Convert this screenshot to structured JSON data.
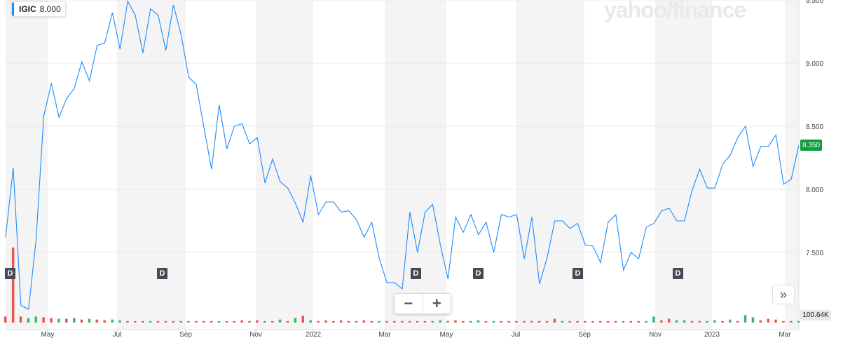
{
  "legend": {
    "symbol": "IGIC",
    "value": "8.000"
  },
  "watermark": "yahoo/finance",
  "last_price_label": "8.350",
  "volume_label": "100.64K",
  "controls": {
    "zoom_out": "−",
    "zoom_in": "+",
    "scroll_right": "»"
  },
  "dividend_marker": "D",
  "colors": {
    "line": "#1a8cff",
    "vol_up": "#3cb371",
    "vol_down": "#ef5350",
    "band": "#f4f4f4",
    "price_tag": "#0e9e3e"
  },
  "chart_data": {
    "type": "line",
    "series": [
      {
        "values": [
          7.62,
          8.17,
          7.08,
          7.05,
          7.6,
          8.58,
          8.84,
          8.57,
          8.72,
          8.8,
          9.01,
          8.86,
          9.14,
          9.16,
          9.4,
          9.11,
          9.49,
          9.38,
          9.08,
          9.43,
          9.38,
          9.1,
          9.46,
          9.23,
          8.89,
          8.83,
          8.49,
          8.16,
          8.67,
          8.32,
          8.5,
          8.52,
          8.36,
          8.41,
          8.05,
          8.24,
          8.06,
          8.01,
          7.89,
          7.74,
          8.11,
          7.8,
          7.9,
          7.9,
          7.82,
          7.83,
          7.76,
          7.62,
          7.74,
          7.45,
          7.26,
          7.26,
          7.21,
          7.82,
          7.5,
          7.82,
          7.88,
          7.56,
          7.29,
          7.78,
          7.66,
          7.8,
          7.64,
          7.74,
          7.5,
          7.8,
          7.78,
          7.8,
          7.45,
          7.78,
          7.25,
          7.46,
          7.75,
          7.75,
          7.69,
          7.73,
          7.56,
          7.55,
          7.42,
          7.74,
          7.8,
          7.36,
          7.5,
          7.45,
          7.7,
          7.73,
          7.83,
          7.85,
          7.75,
          7.75,
          7.99,
          8.16,
          8.01,
          8.01,
          8.2,
          8.27,
          8.41,
          8.5,
          8.18,
          8.34,
          8.34,
          8.43,
          8.04,
          8.08,
          8.35
        ]
      }
    ],
    "volume": [
      {
        "v": 0.08,
        "up": false
      },
      {
        "v": 1.0,
        "up": false
      },
      {
        "v": 0.08,
        "up": false
      },
      {
        "v": 0.06,
        "up": true
      },
      {
        "v": 0.08,
        "up": true
      },
      {
        "v": 0.07,
        "up": false
      },
      {
        "v": 0.06,
        "up": false
      },
      {
        "v": 0.05,
        "up": true
      },
      {
        "v": 0.05,
        "up": false
      },
      {
        "v": 0.06,
        "up": true
      },
      {
        "v": 0.04,
        "up": false
      },
      {
        "v": 0.05,
        "up": true
      },
      {
        "v": 0.04,
        "up": false
      },
      {
        "v": 0.03,
        "up": false
      },
      {
        "v": 0.04,
        "up": true
      },
      {
        "v": 0.03,
        "up": true
      },
      {
        "v": 0.02,
        "up": false
      },
      {
        "v": 0.02,
        "up": false
      },
      {
        "v": 0.02,
        "up": false
      },
      {
        "v": 0.02,
        "up": true
      },
      {
        "v": 0.02,
        "up": false
      },
      {
        "v": 0.02,
        "up": false
      },
      {
        "v": 0.02,
        "up": false
      },
      {
        "v": 0.02,
        "up": false
      },
      {
        "v": 0.02,
        "up": true
      },
      {
        "v": 0.02,
        "up": false
      },
      {
        "v": 0.02,
        "up": false
      },
      {
        "v": 0.02,
        "up": false
      },
      {
        "v": 0.02,
        "up": true
      },
      {
        "v": 0.02,
        "up": false
      },
      {
        "v": 0.02,
        "up": false
      },
      {
        "v": 0.03,
        "up": false
      },
      {
        "v": 0.02,
        "up": false
      },
      {
        "v": 0.03,
        "up": false
      },
      {
        "v": 0.02,
        "up": true
      },
      {
        "v": 0.02,
        "up": false
      },
      {
        "v": 0.04,
        "up": true
      },
      {
        "v": 0.02,
        "up": false
      },
      {
        "v": 0.06,
        "up": true
      },
      {
        "v": 0.09,
        "up": false
      },
      {
        "v": 0.03,
        "up": true
      },
      {
        "v": 0.02,
        "up": false
      },
      {
        "v": 0.03,
        "up": false
      },
      {
        "v": 0.02,
        "up": false
      },
      {
        "v": 0.03,
        "up": false
      },
      {
        "v": 0.02,
        "up": false
      },
      {
        "v": 0.02,
        "up": false
      },
      {
        "v": 0.03,
        "up": false
      },
      {
        "v": 0.02,
        "up": false
      },
      {
        "v": 0.02,
        "up": true
      },
      {
        "v": 0.02,
        "up": false
      },
      {
        "v": 0.02,
        "up": false
      },
      {
        "v": 0.02,
        "up": false
      },
      {
        "v": 0.02,
        "up": false
      },
      {
        "v": 0.02,
        "up": false
      },
      {
        "v": 0.02,
        "up": false
      },
      {
        "v": 0.02,
        "up": true
      },
      {
        "v": 0.03,
        "up": true
      },
      {
        "v": 0.02,
        "up": false
      },
      {
        "v": 0.03,
        "up": false
      },
      {
        "v": 0.02,
        "up": false
      },
      {
        "v": 0.02,
        "up": true
      },
      {
        "v": 0.03,
        "up": true
      },
      {
        "v": 0.02,
        "up": false
      },
      {
        "v": 0.02,
        "up": true
      },
      {
        "v": 0.02,
        "up": false
      },
      {
        "v": 0.02,
        "up": false
      },
      {
        "v": 0.02,
        "up": false
      },
      {
        "v": 0.02,
        "up": false
      },
      {
        "v": 0.02,
        "up": false
      },
      {
        "v": 0.02,
        "up": false
      },
      {
        "v": 0.02,
        "up": false
      },
      {
        "v": 0.05,
        "up": false
      },
      {
        "v": 0.02,
        "up": true
      },
      {
        "v": 0.02,
        "up": false
      },
      {
        "v": 0.02,
        "up": false
      },
      {
        "v": 0.02,
        "up": false
      },
      {
        "v": 0.02,
        "up": false
      },
      {
        "v": 0.02,
        "up": false
      },
      {
        "v": 0.02,
        "up": false
      },
      {
        "v": 0.02,
        "up": false
      },
      {
        "v": 0.02,
        "up": true
      },
      {
        "v": 0.02,
        "up": false
      },
      {
        "v": 0.02,
        "up": false
      },
      {
        "v": 0.02,
        "up": true
      },
      {
        "v": 0.08,
        "up": true
      },
      {
        "v": 0.03,
        "up": false
      },
      {
        "v": 0.05,
        "up": false
      },
      {
        "v": 0.03,
        "up": true
      },
      {
        "v": 0.03,
        "up": true
      },
      {
        "v": 0.02,
        "up": false
      },
      {
        "v": 0.02,
        "up": false
      },
      {
        "v": 0.02,
        "up": true
      },
      {
        "v": 0.03,
        "up": true
      },
      {
        "v": 0.02,
        "up": false
      },
      {
        "v": 0.04,
        "up": true
      },
      {
        "v": 0.02,
        "up": false
      },
      {
        "v": 0.1,
        "up": true
      },
      {
        "v": 0.07,
        "up": true
      },
      {
        "v": 0.03,
        "up": false
      },
      {
        "v": 0.05,
        "up": false
      },
      {
        "v": 0.04,
        "up": false
      },
      {
        "v": 0.02,
        "up": false
      },
      {
        "v": 0.02,
        "up": false
      },
      {
        "v": 0.02,
        "up": true
      }
    ],
    "x_tick_labels": [
      "May",
      "Jul",
      "Sep",
      "Nov",
      "2022",
      "Mar",
      "May",
      "Jul",
      "Sep",
      "Nov",
      "2023",
      "Mar"
    ],
    "y_tick_labels": [
      "9.500",
      "9.000",
      "8.500",
      "8.000",
      "7.500"
    ],
    "y_ticks": [
      9.5,
      9.0,
      8.5,
      8.0,
      7.5
    ],
    "ylim": [
      7.0,
      9.5
    ],
    "dividend_markers_count": 6,
    "grid": true
  }
}
